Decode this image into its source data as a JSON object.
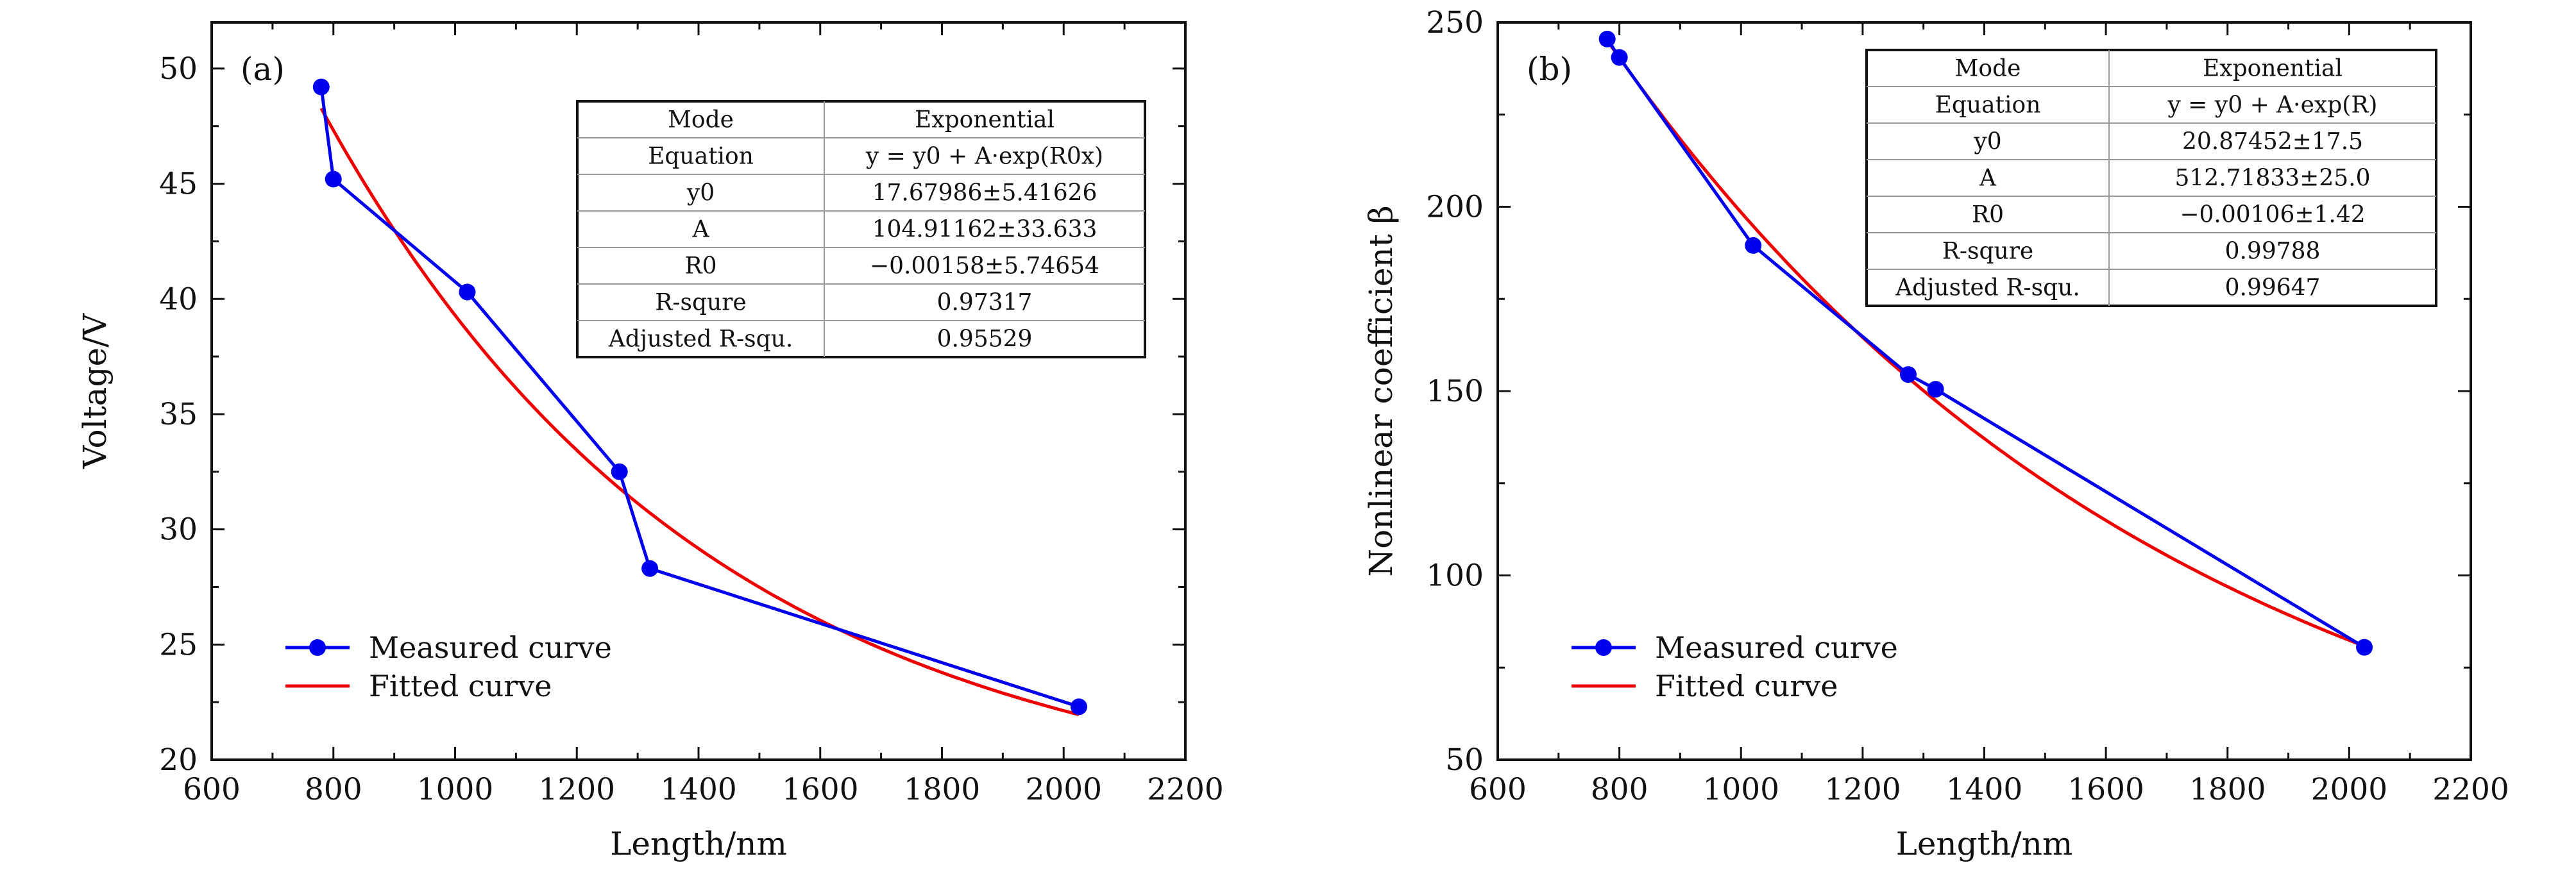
{
  "chart_data": [
    {
      "type": "line",
      "panel_label": "(a)",
      "xlabel": "Length/nm",
      "ylabel": "Voltage/V",
      "xlim": [
        600,
        2200
      ],
      "ylim": [
        20,
        52
      ],
      "xticks": [
        600,
        800,
        1000,
        1200,
        1400,
        1600,
        1800,
        2000,
        2200
      ],
      "yticks": [
        20,
        25,
        30,
        35,
        40,
        45,
        50
      ],
      "grid": false,
      "legend_position": "bottom-left",
      "series": [
        {
          "name": "Measured curve",
          "color": "#0000ee",
          "x": [
            780,
            800,
            1020,
            1270,
            1320,
            2025
          ],
          "y": [
            49.2,
            45.2,
            40.3,
            32.5,
            28.3,
            22.3
          ]
        },
        {
          "name": "Fitted curve",
          "color": "#ee0000",
          "model": "exponential",
          "y0": 17.67986,
          "A": 104.91162,
          "R0": -0.00158,
          "x_range": [
            780,
            2025
          ]
        }
      ],
      "table": {
        "rows": [
          [
            "Mode",
            "Exponential"
          ],
          [
            "Equation",
            "y = y0 + A·exp(R0x)"
          ],
          [
            "y0",
            "17.67986±5.41626"
          ],
          [
            "A",
            "104.91162±33.633"
          ],
          [
            "R0",
            "−0.00158±5.74654"
          ],
          [
            "R-squre",
            "0.97317"
          ],
          [
            "Adjusted R-squ.",
            "0.95529"
          ]
        ]
      }
    },
    {
      "type": "line",
      "panel_label": "(b)",
      "xlabel": "Length/nm",
      "ylabel": "Nonlinear coefficient β",
      "xlim": [
        600,
        2200
      ],
      "ylim": [
        50,
        250
      ],
      "xticks": [
        600,
        800,
        1000,
        1200,
        1400,
        1600,
        1800,
        2000,
        2200
      ],
      "yticks": [
        50,
        100,
        150,
        200,
        250
      ],
      "grid": false,
      "legend_position": "bottom-left",
      "series": [
        {
          "name": "Measured curve",
          "color": "#0000ee",
          "x": [
            780,
            800,
            1020,
            1275,
            1320,
            2025
          ],
          "y": [
            245.5,
            240.5,
            189.5,
            154.5,
            150.5,
            80.5
          ]
        },
        {
          "name": "Fitted curve",
          "color": "#ee0000",
          "model": "exponential",
          "y0": 20.87452,
          "A": 512.71833,
          "R0": -0.00106,
          "x_range": [
            780,
            2025
          ]
        }
      ],
      "table": {
        "rows": [
          [
            "Mode",
            "Exponential"
          ],
          [
            "Equation",
            "y = y0 + A·exp(R)"
          ],
          [
            "y0",
            "20.87452±17.5"
          ],
          [
            "A",
            "512.71833±25.0"
          ],
          [
            "R0",
            "−0.00106±1.42"
          ],
          [
            "R-squre",
            "0.99788"
          ],
          [
            "Adjusted R-squ.",
            "0.99647"
          ]
        ]
      }
    }
  ]
}
